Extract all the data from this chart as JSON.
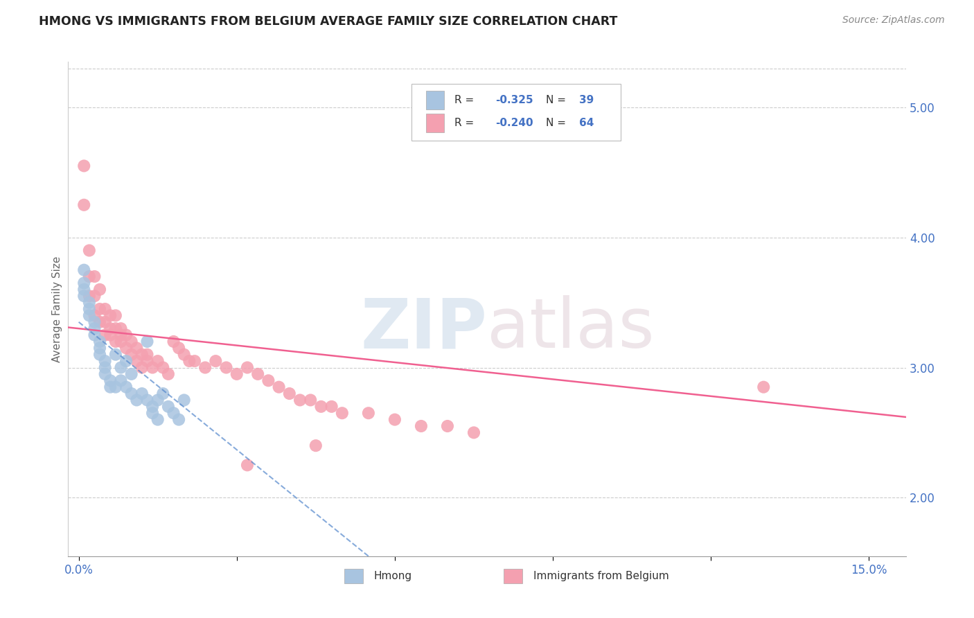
{
  "title": "HMONG VS IMMIGRANTS FROM BELGIUM AVERAGE FAMILY SIZE CORRELATION CHART",
  "source": "Source: ZipAtlas.com",
  "ylabel": "Average Family Size",
  "right_yticks": [
    2.0,
    3.0,
    4.0,
    5.0
  ],
  "xlim": [
    -0.002,
    0.157
  ],
  "ylim": [
    1.55,
    5.35
  ],
  "hmong_R": -0.325,
  "hmong_N": 39,
  "belgium_R": -0.24,
  "belgium_N": 64,
  "hmong_color": "#a8c4e0",
  "belgium_color": "#f4a0b0",
  "hmong_line_color": "#5588cc",
  "belgium_line_color": "#f06090",
  "hmong_x": [
    0.001,
    0.001,
    0.001,
    0.001,
    0.002,
    0.002,
    0.002,
    0.003,
    0.003,
    0.003,
    0.004,
    0.004,
    0.004,
    0.005,
    0.005,
    0.005,
    0.006,
    0.006,
    0.007,
    0.007,
    0.008,
    0.008,
    0.009,
    0.009,
    0.01,
    0.01,
    0.011,
    0.012,
    0.013,
    0.013,
    0.014,
    0.014,
    0.015,
    0.015,
    0.016,
    0.017,
    0.018,
    0.019,
    0.02
  ],
  "hmong_y": [
    3.75,
    3.65,
    3.6,
    3.55,
    3.5,
    3.45,
    3.4,
    3.35,
    3.3,
    3.25,
    3.2,
    3.15,
    3.1,
    3.05,
    3.0,
    2.95,
    2.9,
    2.85,
    3.1,
    2.85,
    3.0,
    2.9,
    3.05,
    2.85,
    2.95,
    2.8,
    2.75,
    2.8,
    2.75,
    3.2,
    2.7,
    2.65,
    2.75,
    2.6,
    2.8,
    2.7,
    2.65,
    2.6,
    2.75
  ],
  "belgium_x": [
    0.001,
    0.001,
    0.002,
    0.002,
    0.002,
    0.003,
    0.003,
    0.003,
    0.004,
    0.004,
    0.004,
    0.005,
    0.005,
    0.005,
    0.006,
    0.006,
    0.006,
    0.007,
    0.007,
    0.007,
    0.008,
    0.008,
    0.008,
    0.009,
    0.009,
    0.01,
    0.01,
    0.011,
    0.011,
    0.012,
    0.012,
    0.013,
    0.013,
    0.014,
    0.015,
    0.016,
    0.017,
    0.018,
    0.019,
    0.02,
    0.021,
    0.022,
    0.024,
    0.026,
    0.028,
    0.03,
    0.032,
    0.034,
    0.036,
    0.038,
    0.04,
    0.042,
    0.044,
    0.046,
    0.048,
    0.05,
    0.055,
    0.06,
    0.065,
    0.07,
    0.075,
    0.13,
    0.032,
    0.045
  ],
  "belgium_y": [
    4.55,
    4.25,
    3.9,
    3.7,
    3.55,
    3.7,
    3.55,
    3.4,
    3.6,
    3.45,
    3.35,
    3.45,
    3.35,
    3.25,
    3.4,
    3.3,
    3.25,
    3.4,
    3.3,
    3.2,
    3.3,
    3.25,
    3.2,
    3.25,
    3.15,
    3.2,
    3.1,
    3.15,
    3.05,
    3.1,
    3.0,
    3.1,
    3.05,
    3.0,
    3.05,
    3.0,
    2.95,
    3.2,
    3.15,
    3.1,
    3.05,
    3.05,
    3.0,
    3.05,
    3.0,
    2.95,
    3.0,
    2.95,
    2.9,
    2.85,
    2.8,
    2.75,
    2.75,
    2.7,
    2.7,
    2.65,
    2.65,
    2.6,
    2.55,
    2.55,
    2.5,
    2.85,
    2.25,
    2.4
  ]
}
